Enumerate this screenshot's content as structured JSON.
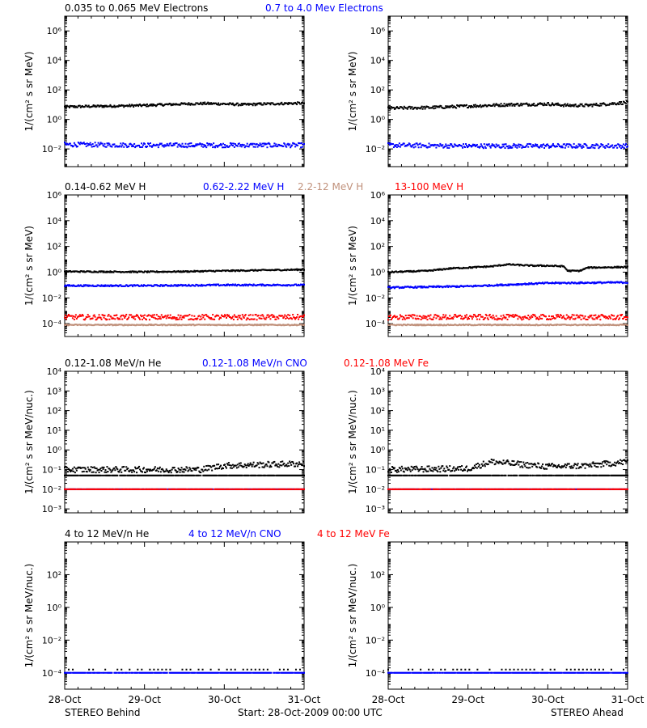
{
  "colors": {
    "black": "#000000",
    "blue": "#0000ff",
    "tan": "#c0907a",
    "red": "#ff0000"
  },
  "x_axis": {
    "tick_labels": [
      "28-Oct",
      "29-Oct",
      "30-Oct",
      "31-Oct"
    ],
    "range_days": [
      0,
      3
    ]
  },
  "footer": {
    "left": "STEREO Behind",
    "center": "Start: 28-Oct-2009 00:00 UTC",
    "right": "STEREO Ahead"
  },
  "chart_data": [
    {
      "type": "scatter",
      "row": 1,
      "titles": [
        {
          "text": "0.035 to 0.065 MeV Electrons",
          "color": "#000000"
        },
        {
          "text": "0.7 to 4.0 Mev Electrons",
          "color": "#0000ff"
        }
      ],
      "ylabel": "1/(cm² s sr MeV)",
      "yscale": "log",
      "ylim_log10": [
        -3.2,
        7.0
      ],
      "y_ticks": [
        {
          "exp": -2,
          "label": "10⁻²"
        },
        {
          "exp": 0,
          "label": "10⁰"
        },
        {
          "exp": 2,
          "label": "10²"
        },
        {
          "exp": 4,
          "label": "10⁴"
        },
        {
          "exp": 6,
          "label": "10⁶"
        }
      ],
      "panels": [
        {
          "side": "Behind",
          "series": [
            {
              "color": "#000000",
              "points_log10": [
                [
                  0,
                  0.85
                ],
                [
                  0.25,
                  0.88
                ],
                [
                  0.5,
                  0.9
                ],
                [
                  0.75,
                  0.92
                ],
                [
                  1,
                  0.95
                ],
                [
                  1.25,
                  1.0
                ],
                [
                  1.5,
                  1.05
                ],
                [
                  1.75,
                  1.08
                ],
                [
                  2,
                  1.05
                ],
                [
                  2.25,
                  1.0
                ],
                [
                  2.5,
                  1.05
                ],
                [
                  2.75,
                  1.08
                ],
                [
                  3,
                  1.1
                ]
              ],
              "noise": 0.08
            },
            {
              "color": "#0000ff",
              "points_log10": [
                [
                  0,
                  -1.7
                ],
                [
                  1,
                  -1.75
                ],
                [
                  2,
                  -1.75
                ],
                [
                  3,
                  -1.75
                ]
              ],
              "noise": 0.15
            }
          ]
        },
        {
          "side": "Ahead",
          "series": [
            {
              "color": "#000000",
              "points_log10": [
                [
                  0,
                  0.75
                ],
                [
                  0.25,
                  0.78
                ],
                [
                  0.5,
                  0.8
                ],
                [
                  0.75,
                  0.85
                ],
                [
                  1,
                  0.9
                ],
                [
                  1.25,
                  0.95
                ],
                [
                  1.5,
                  1.0
                ],
                [
                  1.75,
                  1.02
                ],
                [
                  2,
                  1.05
                ],
                [
                  2.25,
                  0.95
                ],
                [
                  2.5,
                  0.95
                ],
                [
                  2.75,
                  1.05
                ],
                [
                  3,
                  1.15
                ]
              ],
              "noise": 0.1
            },
            {
              "color": "#0000ff",
              "points_log10": [
                [
                  0,
                  -1.75
                ],
                [
                  1,
                  -1.8
                ],
                [
                  2,
                  -1.8
                ],
                [
                  3,
                  -1.8
                ]
              ],
              "noise": 0.15
            }
          ]
        }
      ]
    },
    {
      "type": "scatter",
      "row": 2,
      "titles": [
        {
          "text": "0.14-0.62 MeV H",
          "color": "#000000"
        },
        {
          "text": "0.62-2.22 MeV H",
          "color": "#0000ff"
        },
        {
          "text": "2.2-12 MeV H",
          "color": "#c0907a"
        },
        {
          "text": "13-100 MeV H",
          "color": "#ff0000"
        }
      ],
      "ylabel": "1/(cm² s sr MeV)",
      "yscale": "log",
      "ylim_log10": [
        -5.0,
        6.0
      ],
      "y_ticks": [
        {
          "exp": -4,
          "label": "10⁻⁴"
        },
        {
          "exp": -2,
          "label": "10⁻²"
        },
        {
          "exp": 0,
          "label": "10⁰"
        },
        {
          "exp": 2,
          "label": "10²"
        },
        {
          "exp": 4,
          "label": "10⁴"
        },
        {
          "exp": 6,
          "label": "10⁶"
        }
      ],
      "panels": [
        {
          "side": "Behind",
          "series": [
            {
              "color": "#000000",
              "points_log10": [
                [
                  0,
                  0.05
                ],
                [
                  1,
                  0.02
                ],
                [
                  1.5,
                  0.05
                ],
                [
                  2,
                  0.1
                ],
                [
                  2.5,
                  0.15
                ],
                [
                  3,
                  0.2
                ]
              ],
              "noise": 0.05
            },
            {
              "color": "#0000ff",
              "points_log10": [
                [
                  0,
                  -1.05
                ],
                [
                  1,
                  -1.05
                ],
                [
                  2,
                  -1.0
                ],
                [
                  3,
                  -1.0
                ]
              ],
              "noise": 0.06
            },
            {
              "color": "#c0907a",
              "points_log10": [
                [
                  0,
                  -4.1
                ],
                [
                  3,
                  -4.1
                ]
              ],
              "noise": 0.04
            },
            {
              "color": "#ff0000",
              "points_log10": [
                [
                  0,
                  -3.5
                ],
                [
                  3,
                  -3.5
                ]
              ],
              "noise": 0.2
            }
          ]
        },
        {
          "side": "Ahead",
          "series": [
            {
              "color": "#000000",
              "points_log10": [
                [
                  0,
                  0.0
                ],
                [
                  0.5,
                  0.1
                ],
                [
                  0.8,
                  0.3
                ],
                [
                  1,
                  0.35
                ],
                [
                  1.3,
                  0.45
                ],
                [
                  1.5,
                  0.6
                ],
                [
                  1.8,
                  0.5
                ],
                [
                  2,
                  0.5
                ],
                [
                  2.2,
                  0.45
                ],
                [
                  2.25,
                  0.1
                ],
                [
                  2.4,
                  0.1
                ],
                [
                  2.5,
                  0.35
                ],
                [
                  3,
                  0.4
                ]
              ],
              "noise": 0.05
            },
            {
              "color": "#0000ff",
              "points_log10": [
                [
                  0,
                  -1.2
                ],
                [
                  1,
                  -1.1
                ],
                [
                  2,
                  -0.85
                ],
                [
                  3,
                  -0.8
                ]
              ],
              "noise": 0.06
            },
            {
              "color": "#c0907a",
              "points_log10": [
                [
                  0,
                  -4.1
                ],
                [
                  3,
                  -4.1
                ]
              ],
              "noise": 0.04
            },
            {
              "color": "#ff0000",
              "points_log10": [
                [
                  0,
                  -3.5
                ],
                [
                  3,
                  -3.5
                ]
              ],
              "noise": 0.2
            }
          ]
        }
      ]
    },
    {
      "type": "scatter",
      "row": 3,
      "titles": [
        {
          "text": "0.12-1.08 MeV/n He",
          "color": "#000000"
        },
        {
          "text": "0.12-1.08 MeV/n CNO",
          "color": "#0000ff"
        },
        {
          "text": "0.12-1.08 MeV Fe",
          "color": "#ff0000"
        }
      ],
      "ylabel": "1/(cm² s sr MeV/nuc.)",
      "yscale": "log",
      "ylim_log10": [
        -3.2,
        4.0
      ],
      "y_ticks": [
        {
          "exp": -3,
          "label": "10⁻³"
        },
        {
          "exp": -2,
          "label": "10⁻²"
        },
        {
          "exp": -1,
          "label": "10⁻¹"
        },
        {
          "exp": 0,
          "label": "10⁰"
        },
        {
          "exp": 1,
          "label": "10¹"
        },
        {
          "exp": 2,
          "label": "10²"
        },
        {
          "exp": 3,
          "label": "10³"
        },
        {
          "exp": 4,
          "label": "10⁴"
        }
      ],
      "panels": [
        {
          "side": "Behind",
          "series": [
            {
              "color": "#000000",
              "points_log10": [
                [
                  0,
                  -1.3
                ],
                [
                  3,
                  -1.3
                ]
              ],
              "noise": 0.0
            },
            {
              "color": "#000000",
              "points_log10": [
                [
                  0,
                  -1.0
                ],
                [
                  1,
                  -1.0
                ],
                [
                  1.7,
                  -1.0
                ],
                [
                  2,
                  -0.8
                ],
                [
                  3,
                  -0.7
                ]
              ],
              "noise": 0.15
            },
            {
              "color": "#0000ff",
              "points_log10": [
                [
                  0,
                  -2.0
                ],
                [
                  3,
                  -2.0
                ]
              ],
              "noise": 0.0
            },
            {
              "color": "#ff0000",
              "points_log10": [
                [
                  0,
                  -2.0
                ],
                [
                  3,
                  -2.0
                ]
              ],
              "noise": 0.0
            }
          ]
        },
        {
          "side": "Ahead",
          "series": [
            {
              "color": "#000000",
              "points_log10": [
                [
                  0,
                  -1.3
                ],
                [
                  3,
                  -1.3
                ]
              ],
              "noise": 0.0
            },
            {
              "color": "#000000",
              "points_log10": [
                [
                  0,
                  -1.0
                ],
                [
                  1,
                  -0.95
                ],
                [
                  1.3,
                  -0.6
                ],
                [
                  1.7,
                  -0.75
                ],
                [
                  2,
                  -0.85
                ],
                [
                  2.5,
                  -0.8
                ],
                [
                  3,
                  -0.6
                ]
              ],
              "noise": 0.15
            },
            {
              "color": "#0000ff",
              "points_log10": [
                [
                  0,
                  -2.0
                ],
                [
                  3,
                  -2.0
                ]
              ],
              "noise": 0.0
            },
            {
              "color": "#ff0000",
              "points_log10": [
                [
                  0,
                  -2.0
                ],
                [
                  3,
                  -2.0
                ]
              ],
              "noise": 0.0
            }
          ]
        }
      ]
    },
    {
      "type": "scatter",
      "row": 4,
      "titles": [
        {
          "text": "4 to 12 MeV/n He",
          "color": "#000000"
        },
        {
          "text": "4 to 12 MeV/n CNO",
          "color": "#0000ff"
        },
        {
          "text": "4 to 12 MeV Fe",
          "color": "#ff0000"
        }
      ],
      "ylabel": "1/(cm² s sr MeV/nuc.)",
      "yscale": "log",
      "ylim_log10": [
        -5.0,
        4.0
      ],
      "y_ticks": [
        {
          "exp": -4,
          "label": "10⁻⁴"
        },
        {
          "exp": -2,
          "label": "10⁻²"
        },
        {
          "exp": 0,
          "label": "10⁰"
        },
        {
          "exp": 2,
          "label": "10²"
        }
      ],
      "panels": [
        {
          "side": "Behind",
          "series": [
            {
              "color": "#000000",
              "points_log10": [
                [
                  0,
                  -3.8
                ],
                [
                  3,
                  -3.8
                ]
              ],
              "noise": 0.0,
              "sparse": true
            },
            {
              "color": "#0000ff",
              "points_log10": [
                [
                  0,
                  -4.0
                ],
                [
                  3,
                  -4.0
                ]
              ],
              "noise": 0.0
            }
          ]
        },
        {
          "side": "Ahead",
          "series": [
            {
              "color": "#000000",
              "points_log10": [
                [
                  0,
                  -3.8
                ],
                [
                  3,
                  -3.8
                ]
              ],
              "noise": 0.0,
              "sparse": true
            },
            {
              "color": "#0000ff",
              "points_log10": [
                [
                  0,
                  -4.0
                ],
                [
                  3,
                  -4.0
                ]
              ],
              "noise": 0.0
            }
          ]
        }
      ]
    }
  ]
}
